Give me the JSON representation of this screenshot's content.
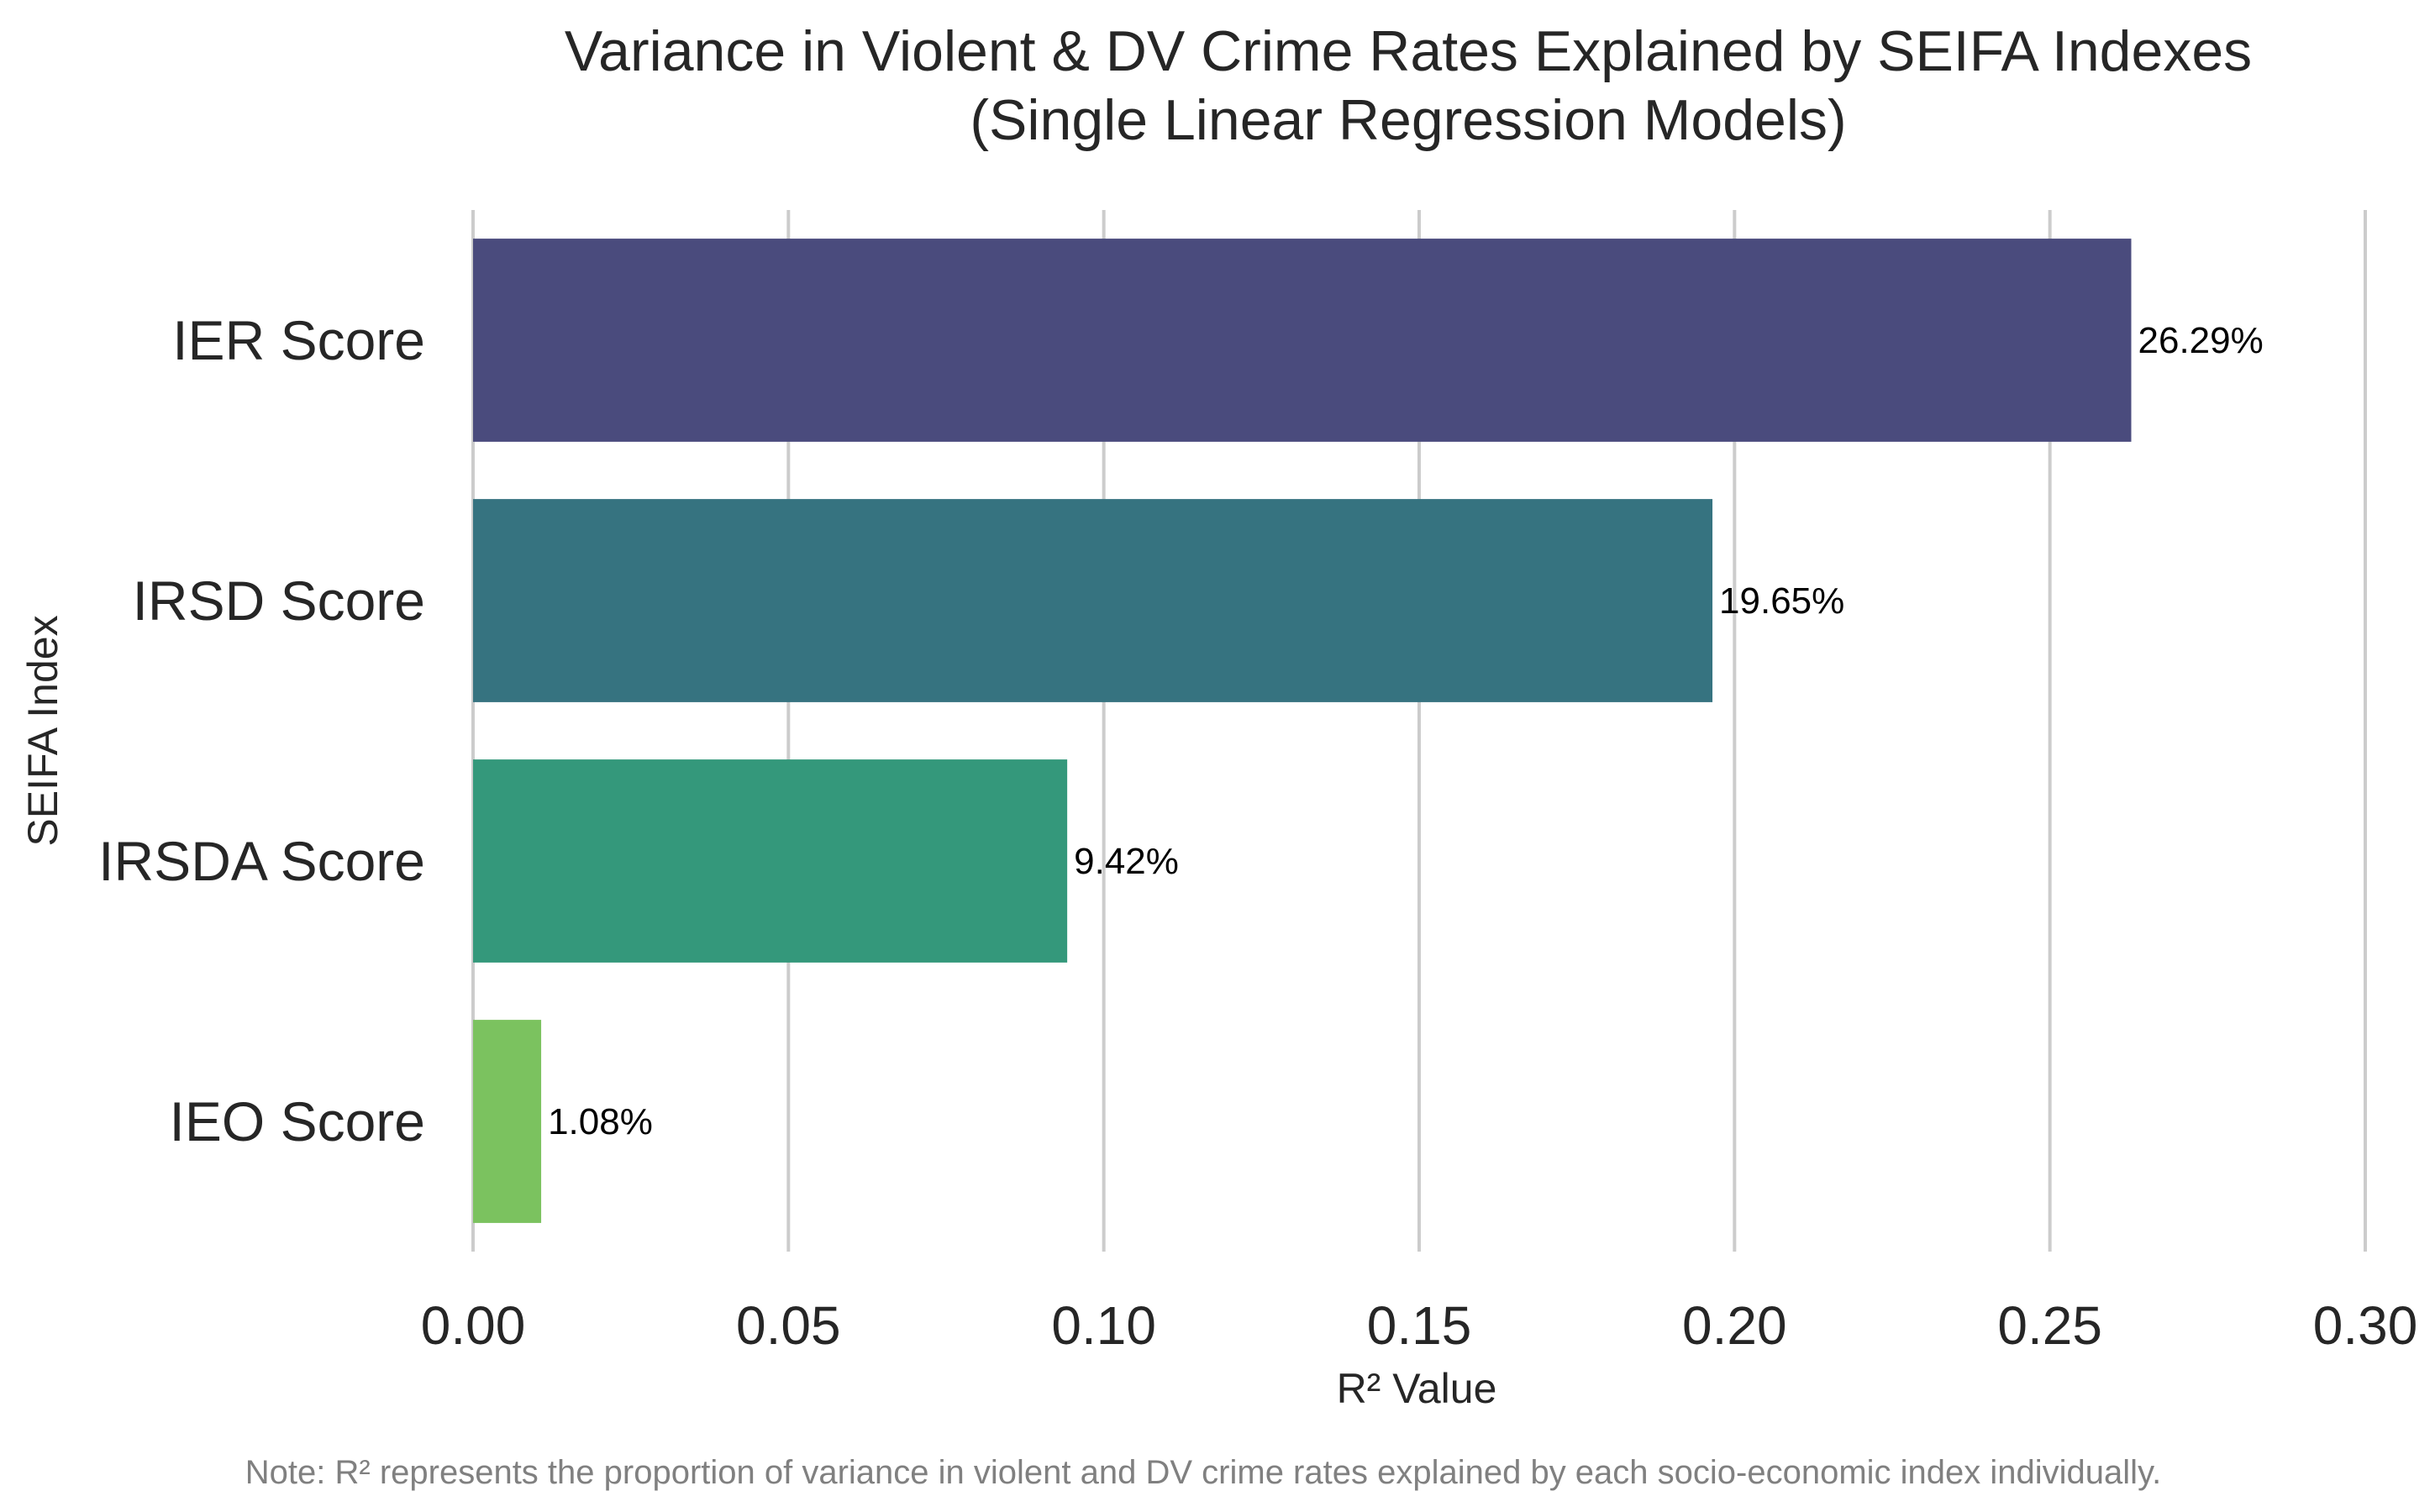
{
  "chart_data": {
    "type": "bar",
    "orientation": "horizontal",
    "title_lines": [
      "Variance in Violent & DV Crime Rates Explained by SEIFA Indexes",
      "(Single Linear Regression Models)"
    ],
    "xlabel": "R² Value",
    "ylabel": "SEIFA Index",
    "categories": [
      "IER Score",
      "IRSD Score",
      "IRSDA Score",
      "IEO Score"
    ],
    "values": [
      0.2629,
      0.1965,
      0.0942,
      0.0108
    ],
    "value_labels": [
      "26.29%",
      "19.65%",
      "9.42%",
      "1.08%"
    ],
    "colors": [
      "#4a4b7d",
      "#367380",
      "#34987b",
      "#7bc25f"
    ],
    "xlim": [
      0,
      0.3
    ],
    "xticks": [
      "0.00",
      "0.05",
      "0.10",
      "0.15",
      "0.20",
      "0.25",
      "0.30"
    ],
    "grid": "vertical",
    "note": "Note: R² represents the proportion of variance in violent and DV crime rates explained by each socio-economic index individually."
  }
}
